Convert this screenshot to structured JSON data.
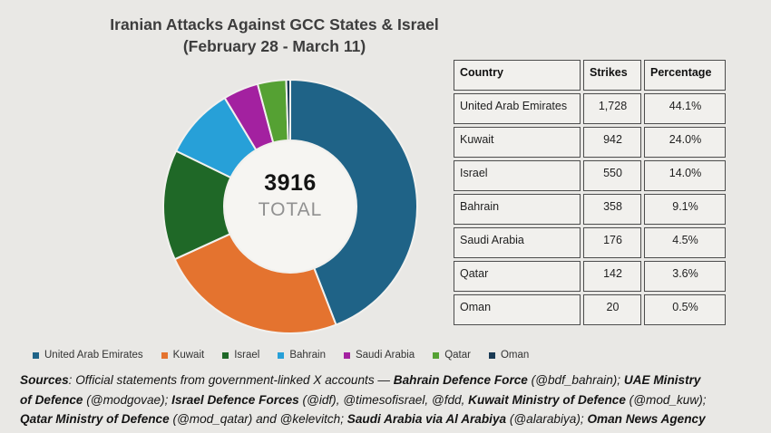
{
  "title": {
    "line1": "Iranian Attacks Against GCC States & Israel",
    "line2": "(February 28 - March 11)"
  },
  "chart_data": {
    "type": "pie",
    "subtype": "donut",
    "title": "Iranian Attacks Against GCC States & Israel (February 28 - March 11)",
    "categories": [
      "United Arab Emirates",
      "Kuwait",
      "Israel",
      "Bahrain",
      "Saudi Arabia",
      "Qatar",
      "Oman"
    ],
    "values": [
      1728,
      942,
      550,
      358,
      176,
      142,
      20
    ],
    "percent_labels": [
      "44.1%",
      "24.0%",
      "14.0%",
      "9.1%",
      "4.5%",
      "3.6%",
      "0.5%"
    ],
    "total": "3916",
    "total_label": "TOTAL",
    "colors": [
      "#1f6387",
      "#e4732f",
      "#1f6827",
      "#27a0d8",
      "#a321a0",
      "#55a133",
      "#1a3a54"
    ],
    "hole_color": "#f6f5f2",
    "slice_gap_color": "#f2f1ee",
    "start_angle_deg": 0,
    "direction": "clockwise",
    "legend_position": "bottom"
  },
  "table": {
    "columns": [
      "Country",
      "Strikes",
      "Percentage"
    ],
    "rows": [
      {
        "country": "United Arab Emirates",
        "strikes": "1,728",
        "percentage": "44.1%"
      },
      {
        "country": "Kuwait",
        "strikes": "942",
        "percentage": "24.0%"
      },
      {
        "country": "Israel",
        "strikes": "550",
        "percentage": "14.0%"
      },
      {
        "country": "Bahrain",
        "strikes": "358",
        "percentage": "9.1%"
      },
      {
        "country": "Saudi Arabia",
        "strikes": "176",
        "percentage": "4.5%"
      },
      {
        "country": "Qatar",
        "strikes": "142",
        "percentage": "3.6%"
      },
      {
        "country": "Oman",
        "strikes": "20",
        "percentage": "0.5%"
      }
    ]
  },
  "sources": {
    "lines": [
      [
        {
          "text": "Sources",
          "bold": true
        },
        {
          "text": ": Official statements from government-linked X accounts — ",
          "bold": false
        },
        {
          "text": "Bahrain Defence Force",
          "bold": true
        },
        {
          "text": " (@bdf_bahrain); ",
          "bold": false
        },
        {
          "text": "UAE Ministry",
          "bold": true
        }
      ],
      [
        {
          "text": "of Defence",
          "bold": true
        },
        {
          "text": " (@modgovae); ",
          "bold": false
        },
        {
          "text": "Israel Defence Forces",
          "bold": true
        },
        {
          "text": " (@idf), @timesofisrael, @fdd, ",
          "bold": false
        },
        {
          "text": "Kuwait Ministry of Defence",
          "bold": true
        },
        {
          "text": " (@mod_kuw);",
          "bold": false
        }
      ],
      [
        {
          "text": "Qatar Ministry of Defence",
          "bold": true
        },
        {
          "text": " (@mod_qatar) and @kelevitch; ",
          "bold": false
        },
        {
          "text": "Saudi Arabia via Al Arabiya",
          "bold": true
        },
        {
          "text": " (@alarabiya); ",
          "bold": false
        },
        {
          "text": "Oman News Agency",
          "bold": true
        }
      ]
    ]
  }
}
